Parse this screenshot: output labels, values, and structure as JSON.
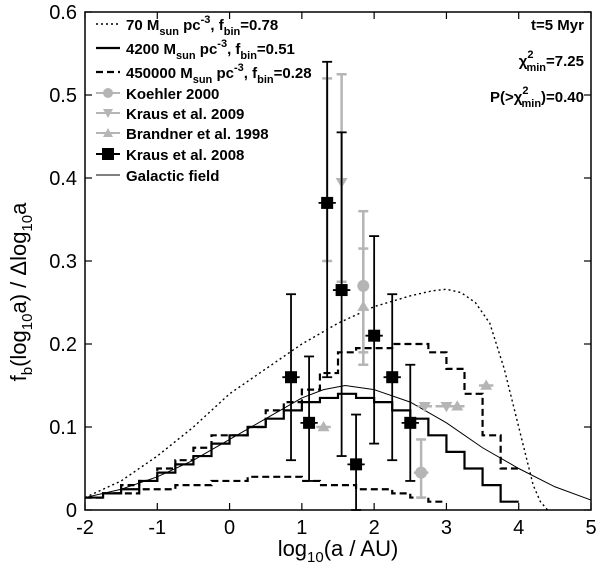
{
  "chart_data": {
    "type": "line",
    "xlabel_main": "log",
    "xlabel_sub": "10",
    "xlabel_rest": "(a / AU)",
    "ylabel_main": "f",
    "ylabel_sub1": "b",
    "ylabel_mid": "(log",
    "ylabel_sub2": "10",
    "ylabel_rest": "a) / Δlog",
    "ylabel_sub3": "10",
    "ylabel_end": "a",
    "xlim": [
      -2,
      5
    ],
    "ylim": [
      0,
      0.6
    ],
    "xticks": [
      "-2",
      "-1",
      "0",
      "1",
      "2",
      "3",
      "4",
      "5"
    ],
    "yticks": [
      "0",
      "0.1",
      "0.2",
      "0.3",
      "0.4",
      "0.5",
      "0.6"
    ],
    "annotations": {
      "time": "t=5 Myr",
      "chi_a": "χ",
      "chi_sup": "2",
      "chi_sub": "min",
      "chi_val": "=7.25",
      "p_a": "P(>χ",
      "p_sup": "2",
      "p_sub": "min",
      "p_val": ")=0.40"
    },
    "legend": [
      {
        "a": "70 M",
        "sub1": "sun",
        "b": " pc",
        "sup": "-3",
        "c": ", f",
        "sub2": "bin",
        "d": "=0.78",
        "style": "dotted"
      },
      {
        "a": "4200 M",
        "sub1": "sun",
        "b": " pc",
        "sup": "-3",
        "c": ", f",
        "sub2": "bin",
        "d": "=0.51",
        "style": "solid"
      },
      {
        "a": "450000 M",
        "sub1": "sun",
        "b": " pc",
        "sup": "-3",
        "c": ", f",
        "sub2": "bin",
        "d": "=0.28",
        "style": "dashed"
      },
      {
        "a": "Koehler 2000",
        "style": "circle"
      },
      {
        "a": "Kraus et al. 2009",
        "style": "tri-down"
      },
      {
        "a": "Brandner et al. 1998",
        "style": "tri-up"
      },
      {
        "a": "Kraus et al. 2008",
        "style": "square"
      },
      {
        "a": "Galactic field",
        "style": "thin"
      }
    ],
    "series": [
      {
        "name": "70 M_sun pc^-3, f_bin=0.78",
        "style": "dotted",
        "x": [
          -2,
          -1.5,
          -1,
          -0.5,
          0,
          0.5,
          1,
          1.5,
          2,
          2.5,
          2.8,
          3,
          3.2,
          3.4,
          3.6,
          3.8,
          4.0,
          4.2,
          4.3,
          4.4
        ],
        "y": [
          0.015,
          0.035,
          0.065,
          0.1,
          0.14,
          0.17,
          0.2,
          0.225,
          0.245,
          0.258,
          0.264,
          0.266,
          0.262,
          0.25,
          0.225,
          0.17,
          0.1,
          0.03,
          0.01,
          0
        ]
      },
      {
        "name": "4200 M_sun pc^-3, f_bin=0.51",
        "style": "step-solid",
        "edges": [
          -2,
          -1.75,
          -1.5,
          -1.25,
          -1,
          -0.75,
          -0.5,
          -0.25,
          0,
          0.25,
          0.5,
          0.75,
          1,
          1.25,
          1.5,
          1.75,
          2,
          2.25,
          2.5,
          2.75,
          3,
          3.25,
          3.5,
          3.75,
          4
        ],
        "values": [
          0.015,
          0.02,
          0.025,
          0.035,
          0.045,
          0.055,
          0.065,
          0.08,
          0.09,
          0.1,
          0.11,
          0.12,
          0.13,
          0.135,
          0.14,
          0.135,
          0.13,
          0.12,
          0.11,
          0.09,
          0.07,
          0.05,
          0.03,
          0.01
        ]
      },
      {
        "name": "450000 M_sun pc^-3, f_bin=0.28",
        "style": "step-dashed",
        "edges": [
          -2,
          -1.75,
          -1.5,
          -1.25,
          -1,
          -0.75,
          -0.5,
          -0.25,
          0,
          0.25,
          0.5,
          0.75,
          1,
          1.25,
          1.5,
          1.75,
          2,
          2.25,
          2.5,
          2.75,
          3,
          3.25,
          3.5,
          3.75,
          4
        ],
        "values": [
          0.015,
          0.02,
          0.03,
          0.035,
          0.05,
          0.06,
          0.075,
          0.09,
          0.09,
          0.1,
          0.12,
          0.13,
          0.145,
          0.165,
          0.19,
          0.195,
          0.195,
          0.2,
          0.2,
          0.19,
          0.17,
          0.14,
          0.09,
          0.05
        ]
      },
      {
        "name": "450000 lower",
        "style": "step-dashed",
        "edges": [
          -2,
          -1.75,
          -1.5,
          -1.25,
          -1,
          -0.75,
          -0.5,
          -0.25,
          0,
          0.25,
          0.5,
          0.75,
          1,
          1.25,
          1.5,
          1.75,
          2,
          2.25,
          2.5,
          2.75,
          3
        ],
        "values": [
          0.015,
          0.02,
          0.02,
          0.025,
          0.025,
          0.03,
          0.03,
          0.035,
          0.035,
          0.04,
          0.04,
          0.04,
          0.035,
          0.03,
          0.03,
          0.025,
          0.025,
          0.02,
          0.015,
          0.01
        ]
      },
      {
        "name": "Galactic field",
        "style": "thin",
        "x": [
          -2,
          -1.5,
          -1,
          -0.5,
          0,
          0.5,
          1,
          1.3,
          1.6,
          2,
          2.5,
          3,
          3.5,
          4,
          4.5,
          5
        ],
        "y": [
          0.015,
          0.025,
          0.04,
          0.06,
          0.085,
          0.11,
          0.135,
          0.145,
          0.15,
          0.145,
          0.13,
          0.105,
          0.075,
          0.05,
          0.028,
          0.012
        ]
      }
    ],
    "points": {
      "koehler": [
        {
          "x": 1.35,
          "y": 0.37,
          "yerr": [
            0.07,
            0.15
          ]
        },
        {
          "x": 1.85,
          "y": 0.27,
          "yerr": [
            0.08,
            0.09
          ]
        },
        {
          "x": 2.65,
          "y": 0.045,
          "yerr": [
            0.03,
            0.04
          ],
          "xerr": 0.1
        }
      ],
      "kraus2009": [
        {
          "x": 1.55,
          "y": 0.395,
          "yerr": [
            0.12,
            0.13
          ]
        },
        {
          "x": 3.0,
          "y": 0.125,
          "xerr": 0.15
        },
        {
          "x": 2.7,
          "y": 0.125,
          "xerr": 0.1
        }
      ],
      "brandner": [
        {
          "x": 1.85,
          "y": 0.245,
          "yerr": [
            0.07,
            0.07
          ]
        },
        {
          "x": 3.15,
          "y": 0.125,
          "xerr": 0.1
        },
        {
          "x": 3.55,
          "y": 0.15,
          "xerr": 0.1
        },
        {
          "x": 1.3,
          "y": 0.1,
          "xerr": 0.1
        }
      ],
      "kraus2008": [
        {
          "x": 0.85,
          "y": 0.16,
          "yerr": [
            0.1,
            0.1
          ],
          "xerr": 0.12
        },
        {
          "x": 1.1,
          "y": 0.105,
          "yerr": [
            0.07,
            0.08
          ],
          "xerr": 0.12
        },
        {
          "x": 1.35,
          "y": 0.37,
          "yerr": [
            0.21,
            0.17
          ],
          "xerr": 0.12
        },
        {
          "x": 1.55,
          "y": 0.265,
          "yerr": [
            0.2,
            0.19
          ],
          "xerr": 0.12
        },
        {
          "x": 1.75,
          "y": 0.055,
          "yerr": [
            0.055,
            0.06
          ],
          "xerr": 0.12
        },
        {
          "x": 2.0,
          "y": 0.21,
          "yerr": [
            0.13,
            0.12
          ],
          "xerr": 0.12
        },
        {
          "x": 2.25,
          "y": 0.16,
          "yerr": [
            0.1,
            0.1
          ],
          "xerr": 0.12
        },
        {
          "x": 2.5,
          "y": 0.105,
          "yerr": [
            0.07,
            0.07
          ],
          "xerr": 0.12
        }
      ]
    }
  }
}
